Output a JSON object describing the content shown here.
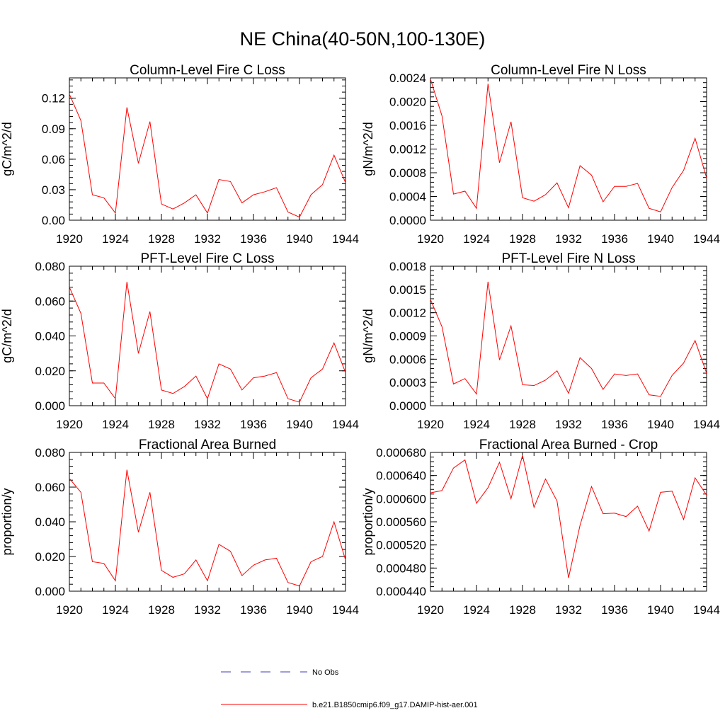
{
  "figure_title": "NE China(40-50N,100-130E)",
  "legend": [
    {
      "label": "No Obs",
      "color": "#3c3cb4",
      "dash": "dashed"
    },
    {
      "label": "b.e21.B1850cmip6.f09_g17.DAMIP-hist-aer.001",
      "color": "#ff0000",
      "dash": "solid"
    }
  ],
  "chart_data": [
    {
      "type": "line",
      "title": "Column-Level Fire C Loss",
      "xlabel": "",
      "ylabel": "gC/m^2/d",
      "xlim": [
        1920,
        1944
      ],
      "ylim": [
        0,
        0.14
      ],
      "xticks": [
        "1920",
        "1924",
        "1928",
        "1932",
        "1936",
        "1940",
        "1944"
      ],
      "yticks": [
        "0.00",
        "0.03",
        "0.06",
        "0.09",
        "0.12"
      ],
      "series": [
        {
          "color": "#ff0000",
          "x": [
            1920,
            1921,
            1922,
            1923,
            1924,
            1925,
            1926,
            1927,
            1928,
            1929,
            1930,
            1931,
            1932,
            1933,
            1934,
            1935,
            1936,
            1937,
            1938,
            1939,
            1940,
            1941,
            1942,
            1943,
            1944
          ],
          "values": [
            0.124,
            0.098,
            0.025,
            0.022,
            0.007,
            0.111,
            0.056,
            0.097,
            0.016,
            0.011,
            0.017,
            0.025,
            0.007,
            0.04,
            0.038,
            0.017,
            0.025,
            0.028,
            0.032,
            0.008,
            0.003,
            0.025,
            0.035,
            0.064,
            0.037
          ]
        }
      ]
    },
    {
      "type": "line",
      "title": "Column-Level Fire N Loss",
      "xlabel": "",
      "ylabel": "gN/m^2/d",
      "xlim": [
        1920,
        1944
      ],
      "ylim": [
        0,
        0.0024
      ],
      "xticks": [
        "1920",
        "1924",
        "1928",
        "1932",
        "1936",
        "1940",
        "1944"
      ],
      "yticks": [
        "0.0000",
        "0.0004",
        "0.0008",
        "0.0012",
        "0.0016",
        "0.0020",
        "0.0024"
      ],
      "series": [
        {
          "color": "#ff0000",
          "x": [
            1920,
            1921,
            1922,
            1923,
            1924,
            1925,
            1926,
            1927,
            1928,
            1929,
            1930,
            1931,
            1932,
            1933,
            1934,
            1935,
            1936,
            1937,
            1938,
            1939,
            1940,
            1941,
            1942,
            1943,
            1944
          ],
          "values": [
            0.00238,
            0.00176,
            0.00044,
            0.00049,
            0.0002,
            0.0023,
            0.00097,
            0.00166,
            0.00038,
            0.00032,
            0.00043,
            0.00063,
            0.00021,
            0.00092,
            0.00076,
            0.00031,
            0.00057,
            0.00057,
            0.00062,
            0.0002,
            0.00014,
            0.00055,
            0.00084,
            0.00138,
            0.00071
          ]
        }
      ]
    },
    {
      "type": "line",
      "title": "PFT-Level Fire C Loss",
      "xlabel": "",
      "ylabel": "gC/m^2/d",
      "xlim": [
        1920,
        1944
      ],
      "ylim": [
        0,
        0.08
      ],
      "xticks": [
        "1920",
        "1924",
        "1928",
        "1932",
        "1936",
        "1940",
        "1944"
      ],
      "yticks": [
        "0.000",
        "0.020",
        "0.040",
        "0.060",
        "0.080"
      ],
      "series": [
        {
          "color": "#ff0000",
          "x": [
            1920,
            1921,
            1922,
            1923,
            1924,
            1925,
            1926,
            1927,
            1928,
            1929,
            1930,
            1931,
            1932,
            1933,
            1934,
            1935,
            1936,
            1937,
            1938,
            1939,
            1940,
            1941,
            1942,
            1943,
            1944
          ],
          "values": [
            0.068,
            0.053,
            0.013,
            0.013,
            0.004,
            0.071,
            0.03,
            0.054,
            0.009,
            0.007,
            0.011,
            0.017,
            0.004,
            0.024,
            0.021,
            0.009,
            0.016,
            0.017,
            0.019,
            0.004,
            0.002,
            0.016,
            0.021,
            0.036,
            0.019
          ]
        }
      ]
    },
    {
      "type": "line",
      "title": "PFT-Level Fire N Loss",
      "xlabel": "",
      "ylabel": "gN/m^2/d",
      "xlim": [
        1920,
        1944
      ],
      "ylim": [
        0,
        0.0018
      ],
      "xticks": [
        "1920",
        "1924",
        "1928",
        "1932",
        "1936",
        "1940",
        "1944"
      ],
      "yticks": [
        "0.0000",
        "0.0003",
        "0.0006",
        "0.0009",
        "0.0012",
        "0.0015",
        "0.0018"
      ],
      "series": [
        {
          "color": "#ff0000",
          "x": [
            1920,
            1921,
            1922,
            1923,
            1924,
            1925,
            1926,
            1927,
            1928,
            1929,
            1930,
            1931,
            1932,
            1933,
            1934,
            1935,
            1936,
            1937,
            1938,
            1939,
            1940,
            1941,
            1942,
            1943,
            1944
          ],
          "values": [
            0.00137,
            0.00102,
            0.00028,
            0.00035,
            0.00015,
            0.0016,
            0.00059,
            0.00103,
            0.00027,
            0.00026,
            0.00033,
            0.00045,
            0.00016,
            0.00062,
            0.00048,
            0.00021,
            0.00041,
            0.00039,
            0.00041,
            0.00014,
            0.00012,
            0.00039,
            0.00055,
            0.00084,
            0.00042
          ]
        }
      ]
    },
    {
      "type": "line",
      "title": "Fractional Area Burned",
      "xlabel": "",
      "ylabel": "proportion/y",
      "xlim": [
        1920,
        1944
      ],
      "ylim": [
        0,
        0.08
      ],
      "xticks": [
        "1920",
        "1924",
        "1928",
        "1932",
        "1936",
        "1940",
        "1944"
      ],
      "yticks": [
        "0.000",
        "0.020",
        "0.040",
        "0.060",
        "0.080"
      ],
      "series": [
        {
          "color": "#ff0000",
          "x": [
            1920,
            1921,
            1922,
            1923,
            1924,
            1925,
            1926,
            1927,
            1928,
            1929,
            1930,
            1931,
            1932,
            1933,
            1934,
            1935,
            1936,
            1937,
            1938,
            1939,
            1940,
            1941,
            1942,
            1943,
            1944
          ],
          "values": [
            0.065,
            0.057,
            0.017,
            0.016,
            0.006,
            0.07,
            0.034,
            0.057,
            0.012,
            0.008,
            0.01,
            0.018,
            0.006,
            0.027,
            0.023,
            0.009,
            0.015,
            0.018,
            0.019,
            0.005,
            0.003,
            0.017,
            0.02,
            0.04,
            0.018
          ]
        }
      ]
    },
    {
      "type": "line",
      "title": "Fractional Area Burned - Crop",
      "xlabel": "",
      "ylabel": "proportion/y",
      "xlim": [
        1920,
        1944
      ],
      "ylim": [
        0.00044,
        0.00068
      ],
      "xticks": [
        "1920",
        "1924",
        "1928",
        "1932",
        "1936",
        "1940",
        "1944"
      ],
      "yticks": [
        "0.000440",
        "0.000480",
        "0.000520",
        "0.000560",
        "0.000600",
        "0.000640",
        "0.000680"
      ],
      "series": [
        {
          "color": "#ff0000",
          "x": [
            1920,
            1921,
            1922,
            1923,
            1924,
            1925,
            1926,
            1927,
            1928,
            1929,
            1930,
            1931,
            1932,
            1933,
            1934,
            1935,
            1936,
            1937,
            1938,
            1939,
            1940,
            1941,
            1942,
            1943,
            1944
          ],
          "values": [
            0.00061,
            0.000614,
            0.000653,
            0.000667,
            0.000592,
            0.000619,
            0.000663,
            0.0006,
            0.000675,
            0.000585,
            0.000634,
            0.000596,
            0.000463,
            0.000554,
            0.000621,
            0.000574,
            0.000575,
            0.000569,
            0.000587,
            0.000544,
            0.000611,
            0.000613,
            0.000564,
            0.000636,
            0.000606
          ]
        }
      ]
    }
  ]
}
